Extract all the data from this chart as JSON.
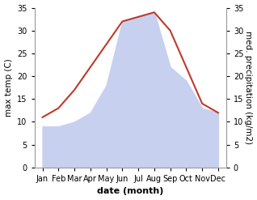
{
  "months": [
    "Jan",
    "Feb",
    "Mar",
    "Apr",
    "May",
    "Jun",
    "Jul",
    "Aug",
    "Sep",
    "Oct",
    "Nov",
    "Dec"
  ],
  "temperature": [
    11,
    13,
    17,
    22,
    27,
    32,
    33,
    34,
    30,
    22,
    14,
    12
  ],
  "precipitation": [
    9,
    9,
    10,
    12,
    18,
    32,
    33,
    34,
    22,
    19,
    13,
    12
  ],
  "temp_color": "#c0392b",
  "precip_color_fill": "#c8d0f0",
  "background_color": "#ffffff",
  "xlabel": "date (month)",
  "ylabel_left": "max temp (C)",
  "ylabel_right": "med. precipitation (kg/m2)",
  "ylim_left": [
    0,
    35
  ],
  "ylim_right": [
    0,
    35
  ],
  "yticks": [
    0,
    5,
    10,
    15,
    20,
    25,
    30,
    35
  ],
  "xlabel_fontsize": 8,
  "ylabel_fontsize": 7.5,
  "tick_fontsize": 7
}
